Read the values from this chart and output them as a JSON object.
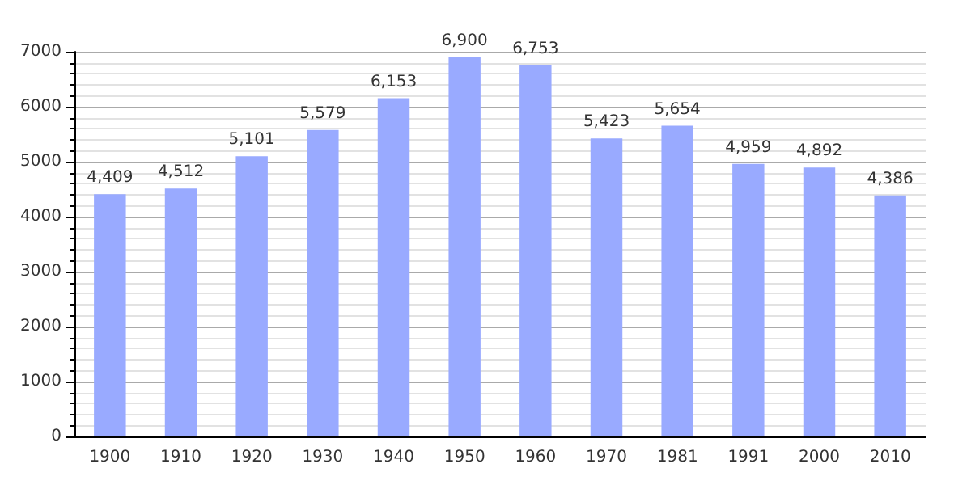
{
  "chart_data": {
    "type": "bar",
    "categories": [
      "1900",
      "1910",
      "1920",
      "1930",
      "1940",
      "1950",
      "1960",
      "1970",
      "1981",
      "1991",
      "2000",
      "2010"
    ],
    "values": [
      4409,
      4512,
      5101,
      5579,
      6153,
      6900,
      6753,
      5423,
      5654,
      4959,
      4892,
      4386
    ],
    "color": "#99aaff",
    "value_labels": [
      "4,409",
      "4,512",
      "5,101",
      "5,579",
      "6,153",
      "6,900",
      "6,753",
      "5,423",
      "5,654",
      "4,959",
      "4,892",
      "4,386"
    ],
    "ylim": [
      0,
      7000
    ],
    "yticks": [
      0,
      1000,
      2000,
      3000,
      4000,
      5000,
      6000,
      7000
    ],
    "grid": "y"
  }
}
